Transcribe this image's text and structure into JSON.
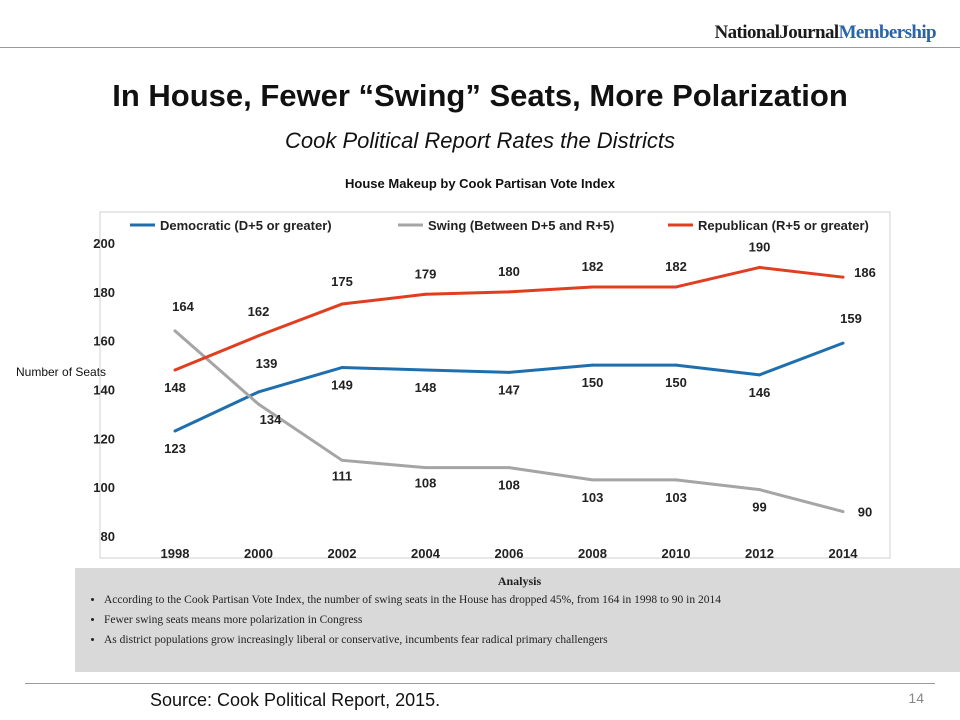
{
  "header": {
    "brand_part1": "NationalJournal",
    "brand_part2": "Membership",
    "title": "In House, Fewer “Swing” Seats, More Polarization",
    "subtitle": "Cook Political Report Rates the Districts"
  },
  "chart_data": {
    "type": "line",
    "title": "House Makeup by Cook Partisan Vote Index",
    "ylabel": "Number of Seats",
    "xlabel": "",
    "x": [
      "1998",
      "2000",
      "2002",
      "2004",
      "2006",
      "2008",
      "2010",
      "2012",
      "2014"
    ],
    "ylim": [
      80,
      200
    ],
    "yticks": [
      80,
      100,
      120,
      140,
      160,
      180,
      200
    ],
    "grid": false,
    "legend_position": "top",
    "series": [
      {
        "name": "Democratic (D+5 or greater)",
        "color": "#1f6fae",
        "values": [
          123,
          139,
          149,
          148,
          147,
          150,
          150,
          146,
          159
        ]
      },
      {
        "name": "Swing (Between D+5 and R+5)",
        "color": "#a5a5a5",
        "values": [
          164,
          134,
          111,
          108,
          108,
          103,
          103,
          99,
          90
        ]
      },
      {
        "name": "Republican (R+5 or greater)",
        "color": "#e13e20",
        "values": [
          148,
          162,
          175,
          179,
          180,
          182,
          182,
          190,
          186
        ]
      }
    ]
  },
  "analysis": {
    "heading": "Analysis",
    "bullets": [
      "According to the Cook Partisan Vote Index, the number of swing seats in the House has dropped 45%, from 164 in 1998 to 90 in 2014",
      "Fewer swing seats means more polarization in Congress",
      "As district populations grow increasingly liberal or conservative, incumbents fear radical primary challengers"
    ]
  },
  "footer": {
    "source": "Source: Cook Political Report, 2015.",
    "page_number": "14"
  }
}
